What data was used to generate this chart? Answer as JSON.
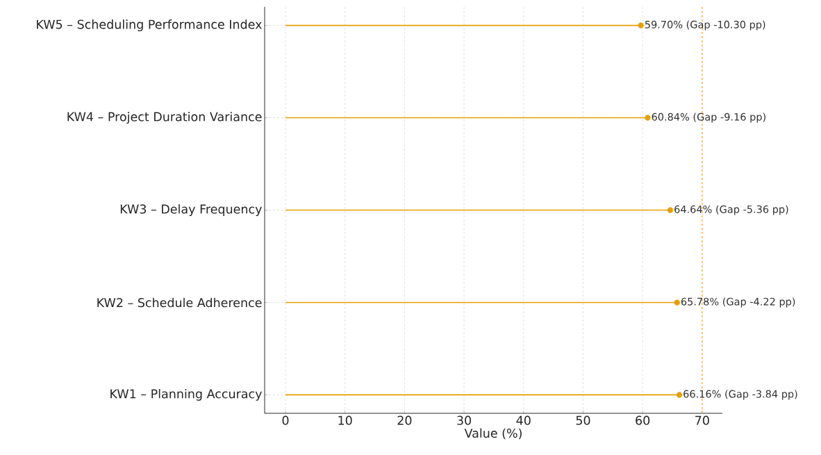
{
  "chart_data": {
    "type": "lollipop",
    "orientation": "horizontal",
    "xlabel": "Value (%)",
    "categories": [
      "KW5 – Scheduling Performance Index",
      "KW4 – Project Duration Variance",
      "KW3 – Delay Frequency",
      "KW2 – Schedule Adherence",
      "KW1 – Planning Accuracy"
    ],
    "values": [
      59.7,
      60.84,
      64.64,
      65.78,
      66.16
    ],
    "value_labels": [
      "59.70% (Gap -10.30 pp)",
      "60.84% (Gap -9.16 pp)",
      "64.64% (Gap -5.36 pp)",
      "65.78% (Gap -4.22 pp)",
      "66.16% (Gap -3.84 pp)"
    ],
    "color": "#e69f00",
    "marker": "circle",
    "xlim": [
      -3.5,
      73.4
    ],
    "xticks": [
      0,
      10,
      20,
      30,
      40,
      50,
      60,
      70
    ],
    "ref_lines": [
      {
        "axis": "x",
        "value": 70,
        "color": "#f2a93b",
        "line_style": "dashed"
      }
    ],
    "grid": true
  }
}
